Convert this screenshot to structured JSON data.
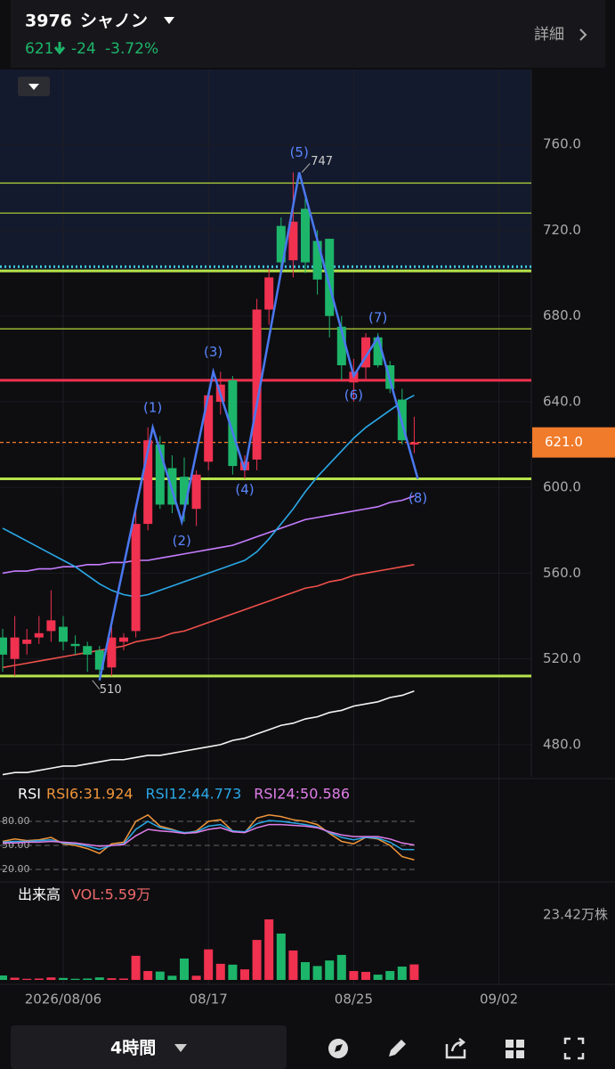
{
  "header": {
    "code": "3976",
    "name": "シャノン",
    "price": 621,
    "change": -24,
    "change_pct": "-3.72%",
    "detail": "詳細"
  },
  "chart_data": [
    {
      "type": "candlestick",
      "open": [
        530,
        520,
        527,
        530,
        533,
        535,
        527,
        526,
        524,
        516,
        528,
        533,
        583,
        620,
        609,
        605,
        590,
        612,
        640,
        650,
        608,
        613,
        683,
        722,
        706,
        730,
        715,
        716,
        675,
        649,
        656,
        670,
        657,
        641,
        620
      ],
      "high": [
        534,
        540,
        534,
        540,
        552,
        540,
        531,
        528,
        526,
        535,
        532,
        590,
        628,
        624,
        615,
        614,
        608,
        645,
        654,
        652,
        615,
        688,
        702,
        726,
        747,
        735,
        720,
        716,
        680,
        660,
        672,
        672,
        659,
        646,
        633
      ],
      "low": [
        514,
        512,
        522,
        527,
        528,
        524,
        522,
        514,
        510,
        512,
        524,
        530,
        580,
        590,
        588,
        584,
        582,
        608,
        634,
        606,
        604,
        608,
        676,
        700,
        698,
        700,
        690,
        670,
        650,
        640,
        650,
        656,
        644,
        620,
        616
      ],
      "close": [
        522,
        530,
        529,
        532,
        538,
        528,
        526,
        522,
        515,
        530,
        530,
        583,
        622,
        592,
        592,
        592,
        606,
        643,
        648,
        610,
        612,
        683,
        698,
        705,
        724,
        705,
        697,
        680,
        657,
        654,
        670,
        657,
        646,
        622,
        621
      ],
      "up_color": "#f0314f",
      "down_color": "#1db56a",
      "ylim": [
        465,
        795
      ],
      "yticks": [
        {
          "value": 480,
          "label": "480.0"
        },
        {
          "value": 520,
          "label": "520.0"
        },
        {
          "value": 560,
          "label": "560.0"
        },
        {
          "value": 600,
          "label": "600.0"
        },
        {
          "value": 640,
          "label": "640.0"
        },
        {
          "value": 680,
          "label": "680.0"
        },
        {
          "value": 720,
          "label": "720.0"
        },
        {
          "value": 760,
          "label": "760.0"
        }
      ],
      "lines": [
        {
          "color": "#f4f4f4",
          "values": [
            466,
            467,
            467,
            468,
            469,
            470,
            470,
            471,
            472,
            473,
            473,
            474,
            475,
            475,
            476,
            477,
            478,
            479,
            480,
            482,
            483,
            485,
            487,
            489,
            490,
            492,
            493,
            495,
            496,
            498,
            499,
            500,
            502,
            503,
            505
          ]
        },
        {
          "color": "#f0504a",
          "values": [
            516,
            517,
            518,
            519,
            520,
            521,
            522,
            523,
            524,
            525,
            526,
            528,
            529,
            530,
            532,
            533,
            535,
            537,
            539,
            541,
            543,
            545,
            547,
            549,
            551,
            553,
            554,
            556,
            557,
            559,
            560,
            561,
            562,
            563,
            564
          ]
        },
        {
          "color": "#c77dff",
          "values": [
            560,
            561,
            561,
            562,
            562,
            563,
            563,
            564,
            564,
            565,
            565,
            566,
            566,
            567,
            568,
            569,
            570,
            571,
            572,
            573,
            575,
            577,
            579,
            581,
            583,
            585,
            586,
            587,
            588,
            589,
            590,
            591,
            593,
            594,
            596
          ]
        },
        {
          "color": "#2aa8e6",
          "values": [
            581,
            578,
            575,
            572,
            569,
            566,
            563,
            559,
            555,
            552,
            550,
            549,
            550,
            552,
            554,
            556,
            558,
            560,
            562,
            564,
            566,
            570,
            576,
            583,
            590,
            598,
            605,
            611,
            617,
            623,
            628,
            632,
            636,
            640,
            643
          ]
        }
      ],
      "levels": [
        {
          "value": 742,
          "color": "#b5d93a",
          "style": "thin"
        },
        {
          "value": 728,
          "color": "#b5d93a",
          "style": "thin"
        },
        {
          "value": 703,
          "color": "#3fc6d6",
          "style": "dotted"
        },
        {
          "value": 701,
          "color": "#b5e34a",
          "style": "thick"
        },
        {
          "value": 674,
          "color": "#b5d93a",
          "style": "thin"
        },
        {
          "value": 650,
          "color": "#f0314f",
          "style": "thick"
        },
        {
          "value": 621,
          "color": "#f07b2a",
          "style": "dashed"
        },
        {
          "value": 604,
          "color": "#b5e34a",
          "style": "thick"
        },
        {
          "value": 512,
          "color": "#b5e34a",
          "style": "thick"
        }
      ],
      "waves": {
        "color": "#4a78f0",
        "x": [
          8,
          12.4,
          14.8,
          17.4,
          20,
          24.5,
          29,
          31,
          34.3
        ],
        "values": [
          510,
          628,
          584,
          654,
          608,
          747,
          652,
          670,
          604
        ],
        "labels": [
          null,
          "(1)",
          "(2)",
          "(3)",
          "(4)",
          "(5)",
          "(6)",
          "(7)",
          "(8)"
        ]
      },
      "last": {
        "value": 621,
        "label": "621.0",
        "color": "#f07b2a"
      },
      "grid": true
    },
    {
      "type": "line",
      "title": "RSI",
      "series": [
        {
          "name": "RSI6:31.924",
          "color": "#f0953a",
          "values": [
            55,
            58,
            56,
            57,
            60,
            52,
            50,
            46,
            40,
            52,
            54,
            80,
            88,
            74,
            70,
            65,
            68,
            80,
            82,
            68,
            66,
            84,
            88,
            86,
            82,
            80,
            76,
            65,
            55,
            52,
            60,
            58,
            50,
            36,
            31.924
          ]
        },
        {
          "name": "RSI12:44.773",
          "color": "#2aa8e6",
          "values": [
            54,
            55,
            55,
            56,
            57,
            53,
            52,
            49,
            45,
            50,
            52,
            70,
            80,
            72,
            69,
            66,
            67,
            74,
            76,
            68,
            67,
            77,
            81,
            80,
            78,
            76,
            73,
            66,
            60,
            57,
            60,
            59,
            54,
            45,
            44.773
          ]
        },
        {
          "name": "RSI24:50.586",
          "color": "#e07ee8",
          "values": [
            53,
            53,
            54,
            54,
            55,
            54,
            53,
            51,
            49,
            50,
            51,
            62,
            70,
            68,
            67,
            65,
            66,
            70,
            72,
            67,
            66,
            72,
            76,
            76,
            75,
            74,
            72,
            67,
            63,
            61,
            61,
            61,
            58,
            53,
            50.586
          ]
        }
      ],
      "ylim": [
        0,
        100
      ],
      "yticks": [
        {
          "value": 80,
          "label": "80.00"
        },
        {
          "value": 50,
          "label": "50.00"
        },
        {
          "value": 20,
          "label": "20.00"
        }
      ]
    },
    {
      "type": "bar",
      "title": "出来高",
      "subtitle": "VOL:5.59万",
      "values": [
        1.6,
        0.8,
        0.4,
        0.5,
        0.9,
        0.7,
        0.4,
        0.5,
        0.9,
        0.6,
        0.5,
        8.7,
        3.2,
        3.0,
        1.5,
        7.7,
        1.5,
        11,
        5.8,
        5.5,
        3.8,
        14.4,
        21.8,
        16.7,
        10.6,
        6.4,
        5,
        7,
        9,
        3.2,
        2.9,
        1.9,
        3.2,
        4.8,
        5.59
      ],
      "ylim": [
        0,
        23.42
      ],
      "yticks": [
        {
          "value": 23.42,
          "label": "23.42万株"
        }
      ],
      "xticks": [
        {
          "value": 5,
          "label": "2026/08/06"
        },
        {
          "value": 17,
          "label": "08/17"
        },
        {
          "value": 29,
          "label": "08/25"
        },
        {
          "value": 41,
          "label": "09/02"
        }
      ]
    }
  ],
  "toolbar": {
    "interval": "4時間"
  }
}
